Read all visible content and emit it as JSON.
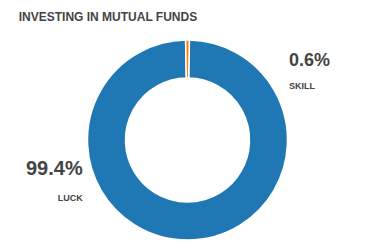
{
  "chart_data": {
    "type": "pie",
    "title": "INVESTING IN MUTUAL FUNDS",
    "categories": [
      "LUCK",
      "SKILL"
    ],
    "values": [
      99.4,
      0.6
    ],
    "value_labels": [
      "99.4%",
      "0.6%"
    ],
    "data_labels": true
  }
}
